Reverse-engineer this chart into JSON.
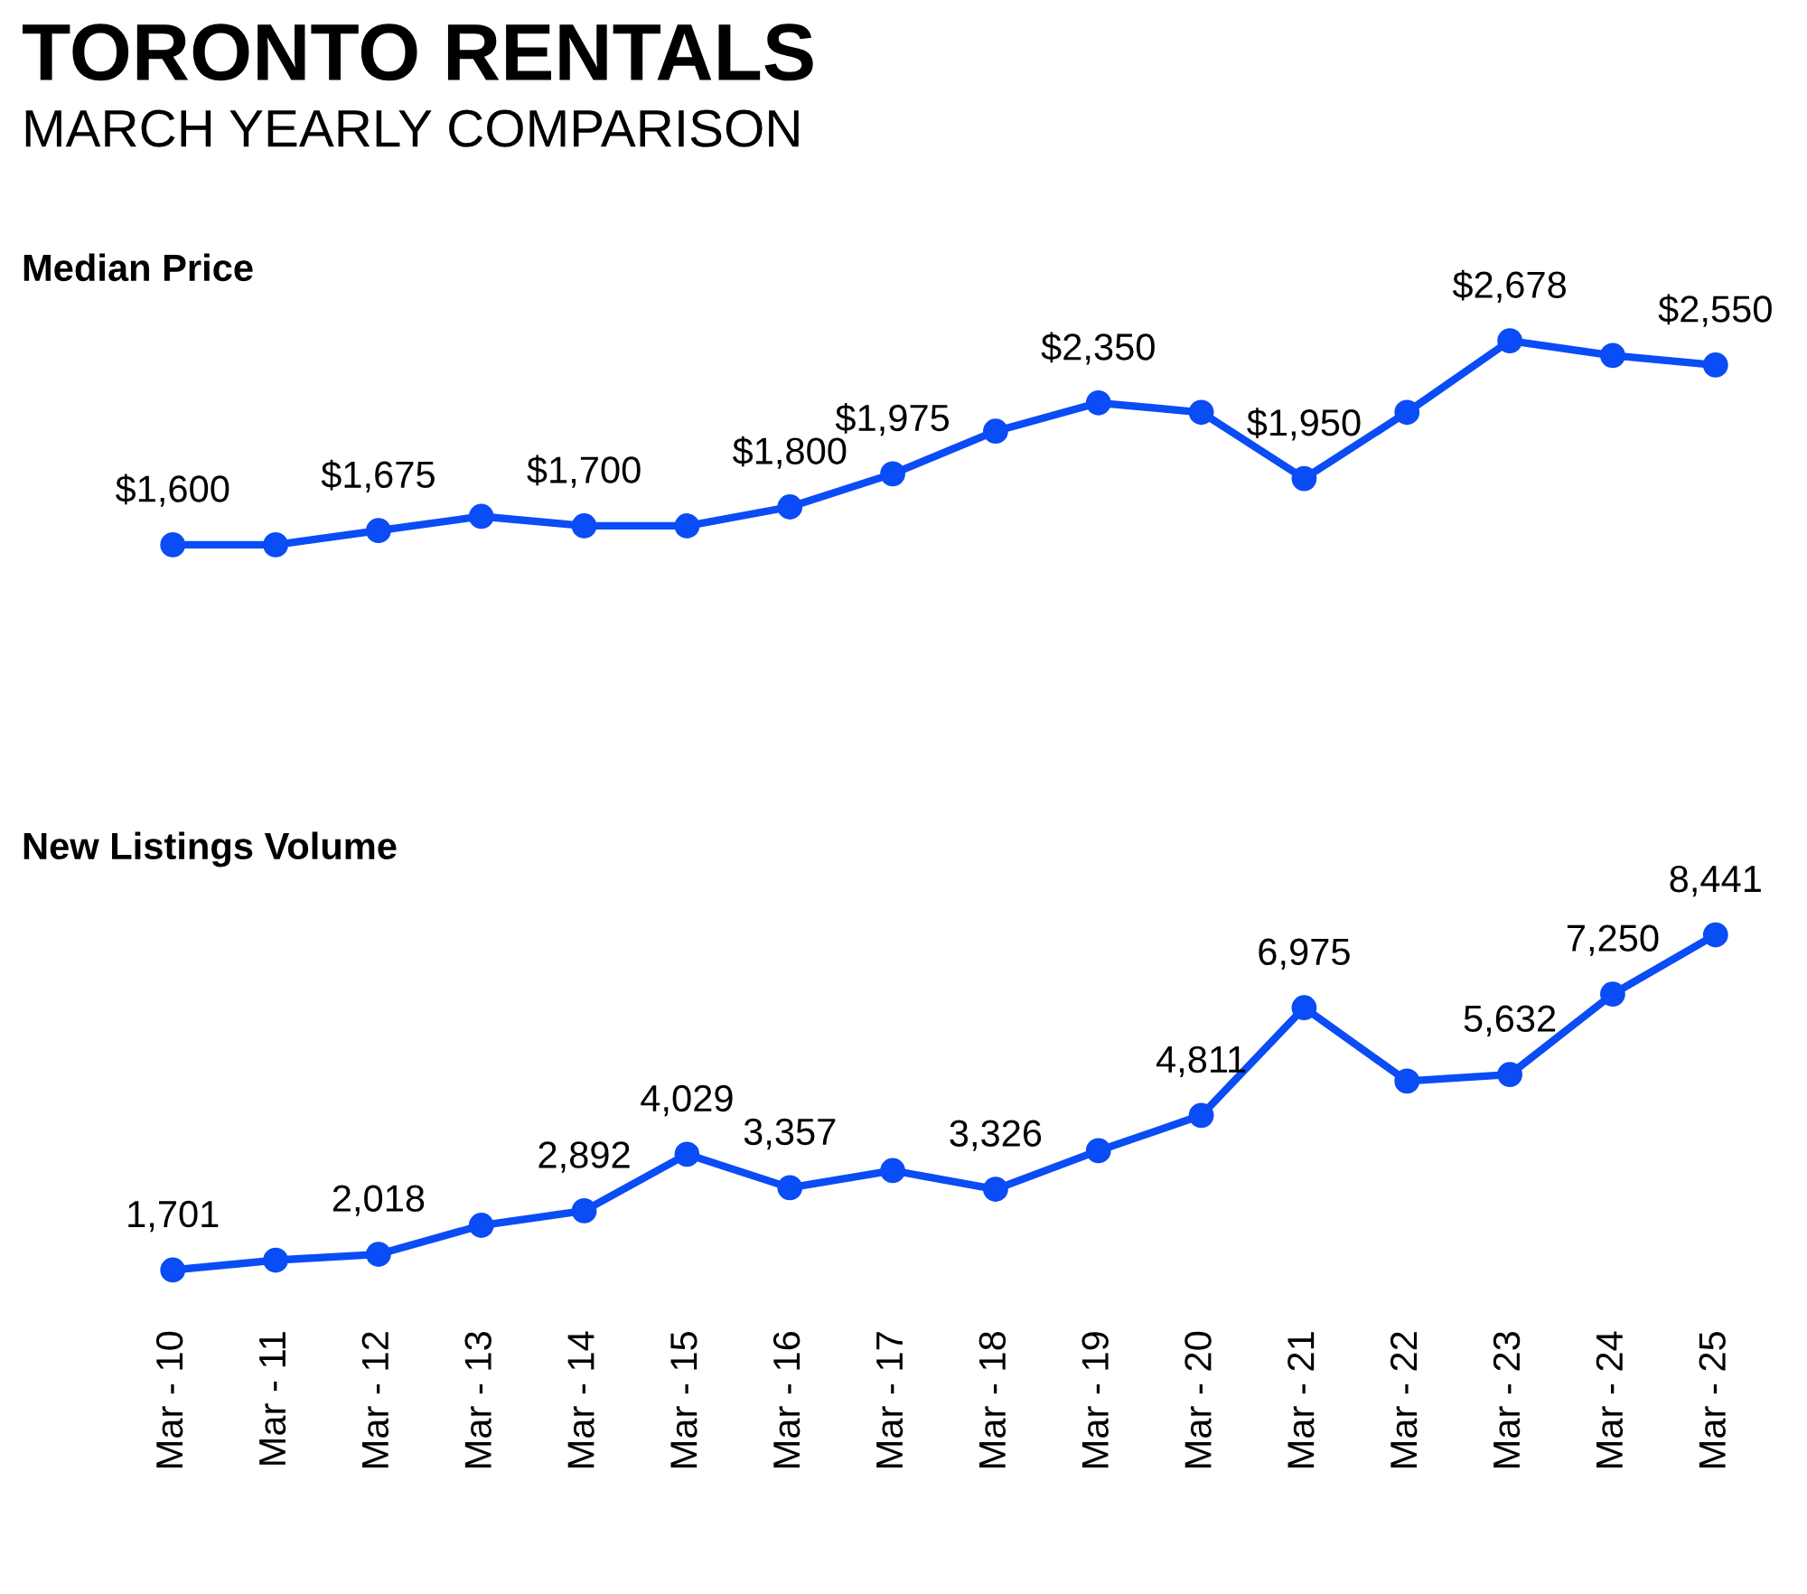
{
  "chart_data": [
    {
      "type": "line",
      "title": "TORONTO RENTALS",
      "subtitle": "MARCH YEARLY COMPARISON",
      "annotations": [
        "Median Price"
      ],
      "categories": [
        null,
        null,
        null,
        null,
        null,
        null,
        null,
        null,
        null,
        null,
        null,
        null,
        null,
        null,
        null,
        null
      ],
      "series": [
        {
          "color": "#0a4cf5",
          "values": [
            1600,
            1600,
            1675,
            1750,
            1700,
            1700,
            1800,
            1975,
            2200,
            2350,
            2300,
            1950,
            2300,
            2678,
            2600,
            2550
          ],
          "value_labels": [
            "$1,600",
            null,
            "$1,675",
            null,
            "$1,700",
            null,
            "$1,800",
            "$1,975",
            null,
            "$2,350",
            null,
            "$1,950",
            null,
            "$2,678",
            null,
            "$2,550"
          ]
        }
      ],
      "marker": "circle",
      "line_style": "solid",
      "grid": false,
      "legend": false,
      "tick_labels": false
    },
    {
      "type": "line",
      "title": "New Listings Volume",
      "categories": [
        "Mar - 10",
        "Mar - 11",
        "Mar - 12",
        "Mar - 13",
        "Mar - 14",
        "Mar - 15",
        "Mar - 16",
        "Mar - 17",
        "Mar - 18",
        "Mar - 19",
        "Mar - 20",
        "Mar - 21",
        "Mar - 22",
        "Mar - 23",
        "Mar - 24",
        "Mar - 25"
      ],
      "series": [
        {
          "color": "#0a4cf5",
          "values": [
            1701,
            1900,
            2018,
            2600,
            2892,
            4029,
            3357,
            3700,
            3326,
            4100,
            4811,
            6975,
            5500,
            5632,
            7250,
            8441
          ],
          "value_labels": [
            "1,701",
            null,
            "2,018",
            null,
            "2,892",
            "4,029",
            "3,357",
            null,
            "3,326",
            null,
            "4,811",
            "6,975",
            null,
            "5,632",
            "7,250",
            "8,441"
          ]
        }
      ],
      "marker": "circle",
      "line_style": "solid",
      "grid": false,
      "legend": false,
      "tick_labels": "x"
    }
  ]
}
